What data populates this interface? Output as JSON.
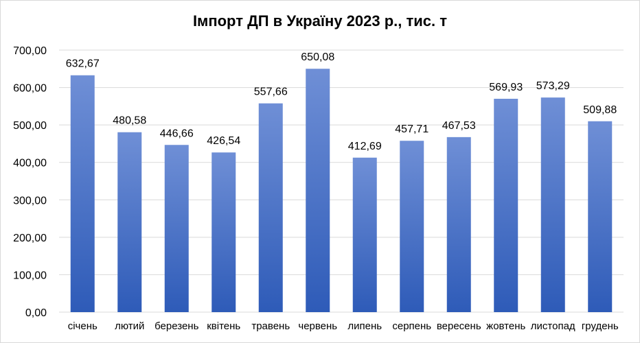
{
  "chart_data": {
    "type": "bar",
    "title": "Імпорт ДП в Україну 2023 р., тис. т",
    "xlabel": "",
    "ylabel": "",
    "ylim": [
      0,
      700
    ],
    "y_ticks": [
      "0,00",
      "100,00",
      "200,00",
      "300,00",
      "400,00",
      "500,00",
      "600,00",
      "700,00"
    ],
    "categories": [
      "січень",
      "лютий",
      "березень",
      "квітень",
      "травень",
      "червень",
      "липень",
      "серпень",
      "вересень",
      "жовтень",
      "листопад",
      "грудень"
    ],
    "values": [
      632.67,
      480.58,
      446.66,
      426.54,
      557.66,
      650.08,
      412.69,
      457.71,
      467.53,
      569.93,
      573.29,
      509.88
    ],
    "value_labels": [
      "632,67",
      "480,58",
      "446,66",
      "426,54",
      "557,66",
      "650,08",
      "412,69",
      "457,71",
      "467,53",
      "569,93",
      "573,29",
      "509,88"
    ],
    "grid": true,
    "legend": "none",
    "colors": {
      "bar_top": "#6f8fd6",
      "bar_bottom": "#2e5bb8",
      "grid": "#d9d9d9"
    }
  }
}
